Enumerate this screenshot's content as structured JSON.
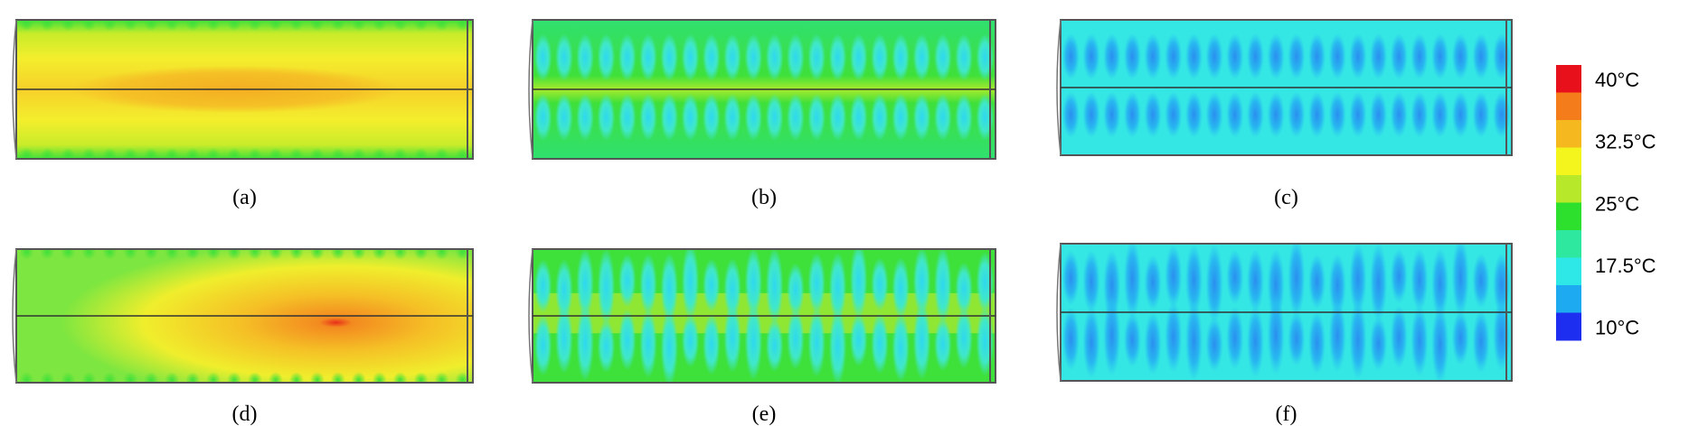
{
  "panels": [
    {
      "label": "(a)"
    },
    {
      "label": "(b)"
    },
    {
      "label": "(c)"
    },
    {
      "label": "(d)"
    },
    {
      "label": "(e)"
    },
    {
      "label": "(f)"
    }
  ],
  "colorbar": {
    "labels": [
      "40°C",
      "32.5°C",
      "25°C",
      "17.5°C",
      "10°C"
    ]
  }
}
